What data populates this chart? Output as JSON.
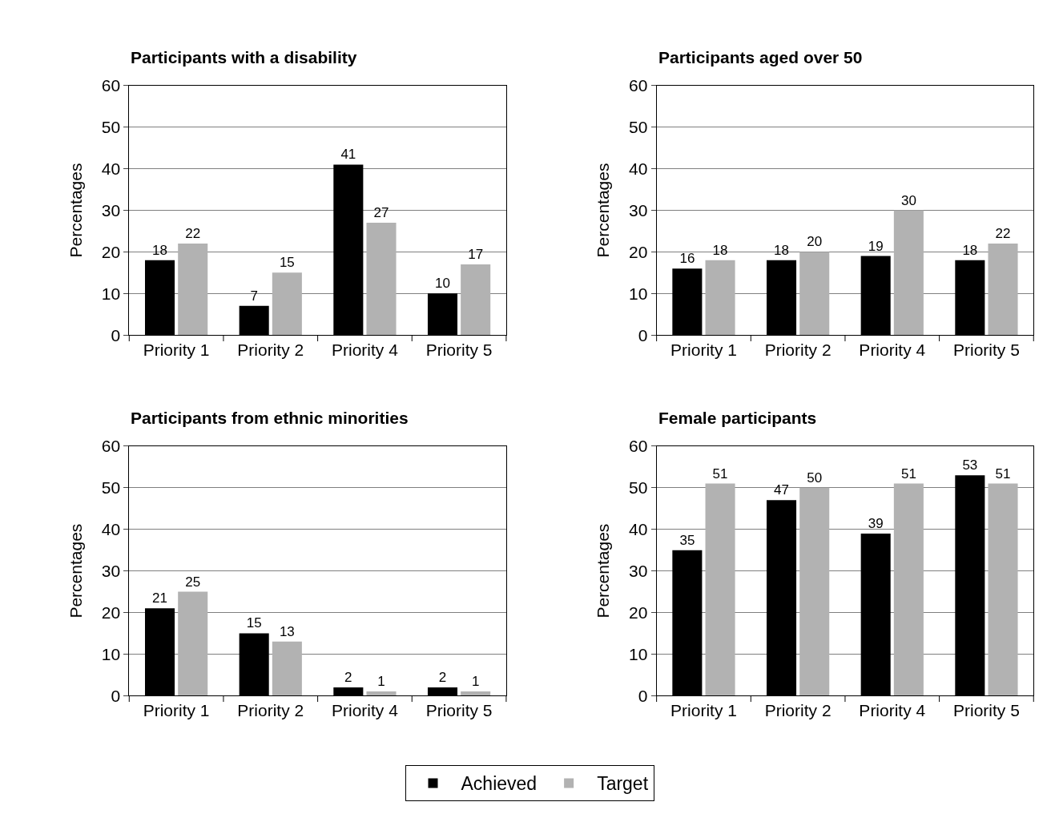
{
  "chart_data": [
    {
      "type": "bar",
      "title": "Participants with a disability",
      "ylabel": "Percentages",
      "categories": [
        "Priority 1",
        "Priority 2",
        "Priority 4",
        "Priority 5"
      ],
      "series": [
        {
          "name": "Achieved",
          "color": "#000000",
          "values": [
            18,
            7,
            41,
            10
          ]
        },
        {
          "name": "Target",
          "color": "#b2b2b2",
          "values": [
            22,
            15,
            27,
            17
          ]
        }
      ],
      "ylim": [
        0,
        60
      ],
      "yticks": [
        0,
        10,
        20,
        30,
        40,
        50,
        60
      ],
      "grid": "y",
      "data_labels": true,
      "legend": "bottom"
    },
    {
      "type": "bar",
      "title": "Participants aged over 50",
      "ylabel": "Percentages",
      "categories": [
        "Priority 1",
        "Priority 2",
        "Priority 4",
        "Priority 5"
      ],
      "series": [
        {
          "name": "Achieved",
          "color": "#000000",
          "values": [
            16,
            18,
            19,
            18
          ]
        },
        {
          "name": "Target",
          "color": "#b2b2b2",
          "values": [
            18,
            20,
            30,
            22
          ]
        }
      ],
      "ylim": [
        0,
        60
      ],
      "yticks": [
        0,
        10,
        20,
        30,
        40,
        50,
        60
      ],
      "grid": "y",
      "data_labels": true,
      "legend": "bottom"
    },
    {
      "type": "bar",
      "title": "Participants from ethnic minorities",
      "ylabel": "Percentages",
      "categories": [
        "Priority 1",
        "Priority 2",
        "Priority 4",
        "Priority 5"
      ],
      "series": [
        {
          "name": "Achieved",
          "color": "#000000",
          "values": [
            21,
            15,
            2,
            2
          ]
        },
        {
          "name": "Target",
          "color": "#b2b2b2",
          "values": [
            25,
            13,
            1,
            1
          ]
        }
      ],
      "ylim": [
        0,
        60
      ],
      "yticks": [
        0,
        10,
        20,
        30,
        40,
        50,
        60
      ],
      "grid": "y",
      "data_labels": true,
      "legend": "bottom"
    },
    {
      "type": "bar",
      "title": "Female participants",
      "ylabel": "Percentages",
      "categories": [
        "Priority 1",
        "Priority 2",
        "Priority 4",
        "Priority 5"
      ],
      "series": [
        {
          "name": "Achieved",
          "color": "#000000",
          "values": [
            35,
            47,
            39,
            53
          ]
        },
        {
          "name": "Target",
          "color": "#b2b2b2",
          "values": [
            51,
            50,
            51,
            51
          ]
        }
      ],
      "ylim": [
        0,
        60
      ],
      "yticks": [
        0,
        10,
        20,
        30,
        40,
        50,
        60
      ],
      "grid": "y",
      "data_labels": true,
      "legend": "bottom"
    }
  ]
}
